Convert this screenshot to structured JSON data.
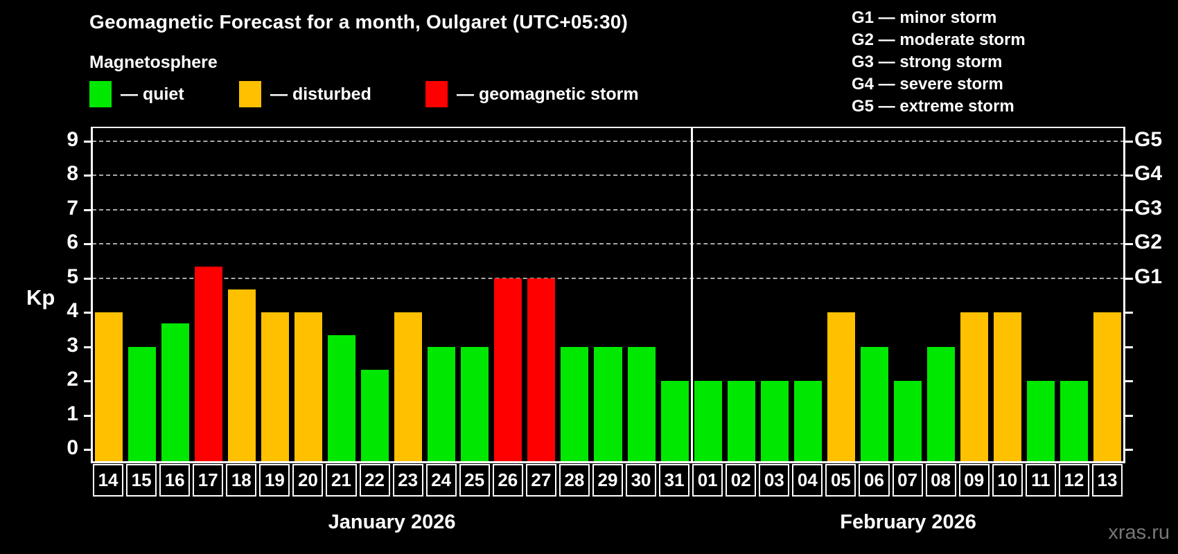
{
  "title": "Geomagnetic Forecast for a month, Oulgaret (UTC+05:30)",
  "subtitle": "Magnetosphere",
  "legend": {
    "items": [
      {
        "label": "— quiet",
        "color": "#00e800",
        "status": "quiet"
      },
      {
        "label": "— disturbed",
        "color": "#ffc000",
        "status": "disturbed"
      },
      {
        "label": "— geomagnetic storm",
        "color": "#ff0000",
        "status": "storm"
      }
    ]
  },
  "g_legend": {
    "lines": [
      "G1 — minor storm",
      "G2 — moderate storm",
      "G3 — strong storm",
      "G4 — severe storm",
      "G5 — extreme storm"
    ]
  },
  "axes": {
    "kp_label": "Kp",
    "left_ticks": [
      "0",
      "1",
      "2",
      "3",
      "4",
      "5",
      "6",
      "7",
      "8",
      "9"
    ],
    "right_labels": [
      {
        "kp": 5,
        "label": "G1"
      },
      {
        "kp": 6,
        "label": "G2"
      },
      {
        "kp": 7,
        "label": "G3"
      },
      {
        "kp": 8,
        "label": "G4"
      },
      {
        "kp": 9,
        "label": "G5"
      }
    ]
  },
  "watermark": "xras.ru",
  "colors": {
    "background": "#000000",
    "text": "#ffffff",
    "quiet": "#00e800",
    "disturbed": "#ffc000",
    "storm": "#ff0000",
    "gridline": "#aaaaaa",
    "watermark": "#777777"
  },
  "chart_data": {
    "type": "bar",
    "title": "Geomagnetic Forecast for a month, Oulgaret (UTC+05:30)",
    "ylabel": "Kp",
    "ylim": [
      0,
      9
    ],
    "gridlines_kp": [
      5,
      6,
      7,
      8,
      9
    ],
    "g_scale": {
      "G1": 5,
      "G2": 6,
      "G3": 7,
      "G4": 8,
      "G5": 9
    },
    "legend_position": "top-left",
    "months": [
      {
        "label": "January 2026",
        "days": [
          {
            "day": "14",
            "kp": 4.0,
            "status": "disturbed"
          },
          {
            "day": "15",
            "kp": 3.0,
            "status": "quiet"
          },
          {
            "day": "16",
            "kp": 3.67,
            "status": "quiet"
          },
          {
            "day": "17",
            "kp": 5.33,
            "status": "storm"
          },
          {
            "day": "18",
            "kp": 4.67,
            "status": "disturbed"
          },
          {
            "day": "19",
            "kp": 4.0,
            "status": "disturbed"
          },
          {
            "day": "20",
            "kp": 4.0,
            "status": "disturbed"
          },
          {
            "day": "21",
            "kp": 3.33,
            "status": "quiet"
          },
          {
            "day": "22",
            "kp": 2.33,
            "status": "quiet"
          },
          {
            "day": "23",
            "kp": 4.0,
            "status": "disturbed"
          },
          {
            "day": "24",
            "kp": 3.0,
            "status": "quiet"
          },
          {
            "day": "25",
            "kp": 3.0,
            "status": "quiet"
          },
          {
            "day": "26",
            "kp": 5.0,
            "status": "storm"
          },
          {
            "day": "27",
            "kp": 5.0,
            "status": "storm"
          },
          {
            "day": "28",
            "kp": 3.0,
            "status": "quiet"
          },
          {
            "day": "29",
            "kp": 3.0,
            "status": "quiet"
          },
          {
            "day": "30",
            "kp": 3.0,
            "status": "quiet"
          },
          {
            "day": "31",
            "kp": 2.0,
            "status": "quiet"
          }
        ]
      },
      {
        "label": "February 2026",
        "days": [
          {
            "day": "01",
            "kp": 2.0,
            "status": "quiet"
          },
          {
            "day": "02",
            "kp": 2.0,
            "status": "quiet"
          },
          {
            "day": "03",
            "kp": 2.0,
            "status": "quiet"
          },
          {
            "day": "04",
            "kp": 2.0,
            "status": "quiet"
          },
          {
            "day": "05",
            "kp": 4.0,
            "status": "disturbed"
          },
          {
            "day": "06",
            "kp": 3.0,
            "status": "quiet"
          },
          {
            "day": "07",
            "kp": 2.0,
            "status": "quiet"
          },
          {
            "day": "08",
            "kp": 3.0,
            "status": "quiet"
          },
          {
            "day": "09",
            "kp": 4.0,
            "status": "disturbed"
          },
          {
            "day": "10",
            "kp": 4.0,
            "status": "disturbed"
          },
          {
            "day": "11",
            "kp": 2.0,
            "status": "quiet"
          },
          {
            "day": "12",
            "kp": 2.0,
            "status": "quiet"
          },
          {
            "day": "13",
            "kp": 4.0,
            "status": "disturbed"
          }
        ]
      }
    ]
  }
}
